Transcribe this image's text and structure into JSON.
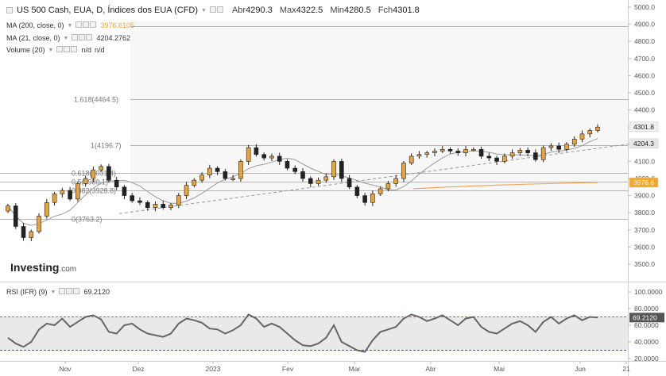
{
  "header": {
    "title": "US 500 Cash, EUA, D, Índices dos EUA (CFD)",
    "open_label": "Abr",
    "open": "4290.3",
    "high_label": "Max",
    "high": "4322.5",
    "low_label": "Min",
    "low": "4280.5",
    "close_label": "Fch",
    "close": "4301.8"
  },
  "indicators": {
    "ma200": {
      "label": "MA (200, close, 0)",
      "value": "3976.6105"
    },
    "ma21": {
      "label": "MA (21, close, 0)",
      "value": "4204.2762"
    },
    "volume": {
      "label": "Volume (20)",
      "v1": "n/d",
      "v2": "n/d"
    },
    "rsi": {
      "label": "RSI (IFR) (9)",
      "value": "69.2120"
    }
  },
  "fib_levels": [
    {
      "label": "1.618(4464.5)",
      "value": 4464.5
    },
    {
      "label": "1(4196.7)",
      "value": 4196.7
    },
    {
      "label": "0.618(4031.4)",
      "value": 4031.4
    },
    {
      "label": "0.5(3980.1)",
      "value": 3980.1
    },
    {
      "label": "0.382(3928.8)",
      "value": 3928.8
    },
    {
      "label": "0(3763.2)",
      "value": 3763.2
    }
  ],
  "price_axis": {
    "ticks": [
      "5000.0",
      "4900.0",
      "4800.0",
      "4700.0",
      "4600.0",
      "4500.0",
      "4400.0",
      "4300.0",
      "4200.0",
      "4100.0",
      "4000.0",
      "3900.0",
      "3800.0",
      "3700.0",
      "3600.0",
      "3500.0"
    ],
    "tick_values": [
      5000,
      4900,
      4800,
      4700,
      4600,
      4500,
      4400,
      4300,
      4200,
      4100,
      4000,
      3900,
      3800,
      3700,
      3600,
      3500
    ],
    "last_price_label": "4301.8",
    "fib1_label": "4204.3",
    "ma200_label": "3976.6"
  },
  "rsi_axis": {
    "ticks": [
      "100.0000",
      "80.0000",
      "60.0000",
      "40.0000",
      "20.0000"
    ],
    "tick_values": [
      100,
      80,
      60,
      40,
      20
    ],
    "current_label": "69.2120"
  },
  "time_axis": {
    "labels": [
      "Nov",
      "Dez",
      "2023",
      "Fev",
      "Mar",
      "Abr",
      "Mai",
      "Jun",
      "21"
    ]
  },
  "logo": {
    "main": "Investing",
    "suffix": ".com"
  },
  "colors": {
    "up": "#e8a33c",
    "down": "#222222",
    "fib_line": "#9e9e9e",
    "ma200": "#f2a65a",
    "ma21": "#9a9a9a",
    "rsi_line": "#666666",
    "rsi_upper": "#d9534f",
    "rsi_lower": "#3f51b5",
    "last_price_bg": "#f0f0f0",
    "ma200_bg": "#f5a623",
    "fib_bg": "#e6e6e6"
  },
  "chart_data": {
    "type": "candlestick",
    "series": [
      {
        "name": "US 500 Cash",
        "close": [
          3840,
          3720,
          3655,
          3690,
          3780,
          3860,
          3910,
          3930,
          3880,
          3970,
          4000,
          4050,
          4070,
          3990,
          3950,
          3900,
          3870,
          3860,
          3830,
          3850,
          3830,
          3845,
          3900,
          3960,
          3990,
          4020,
          4060,
          4040,
          4000,
          4000,
          4100,
          4180,
          4140,
          4120,
          4130,
          4100,
          4060,
          4040,
          4000,
          3970,
          3990,
          4010,
          4100,
          4000,
          3950,
          3900,
          3860,
          3910,
          3940,
          3970,
          4000,
          4090,
          4130,
          4140,
          4150,
          4160,
          4170,
          4160,
          4150,
          4170,
          4170,
          4130,
          4120,
          4100,
          4130,
          4150,
          4165,
          4150,
          4110,
          4180,
          4190,
          4170,
          4200,
          4230,
          4260,
          4280,
          4300
        ]
      },
      {
        "name": "MA (200, close, 0)",
        "close": [
          3976.6
        ]
      },
      {
        "name": "MA (21, close, 0)",
        "close": [
          4204.3
        ]
      }
    ],
    "rsi": {
      "name": "RSI (IFR) (9)",
      "last": 69.212,
      "upper": 70,
      "lower": 30,
      "values": [
        45,
        38,
        34,
        40,
        55,
        62,
        60,
        68,
        58,
        64,
        70,
        72,
        67,
        52,
        50,
        60,
        62,
        55,
        50,
        48,
        46,
        50,
        62,
        68,
        66,
        63,
        56,
        55,
        50,
        54,
        60,
        73,
        68,
        58,
        62,
        58,
        50,
        42,
        36,
        35,
        38,
        45,
        60,
        40,
        35,
        30,
        28,
        42,
        52,
        55,
        58,
        68,
        73,
        70,
        65,
        68,
        72,
        66,
        60,
        68,
        70,
        58,
        52,
        50,
        56,
        62,
        65,
        60,
        52,
        64,
        70,
        62,
        68,
        72,
        66,
        70,
        69.2
      ]
    },
    "ylim": [
      3500,
      5000
    ],
    "rsi_ylim": [
      20,
      100
    ]
  }
}
